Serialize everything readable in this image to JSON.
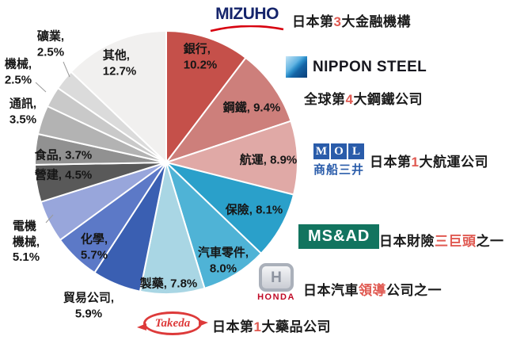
{
  "chart_data": {
    "type": "pie",
    "title": "",
    "direction": "clockwise",
    "start_angle_deg": 0,
    "legend": "none",
    "slices": [
      {
        "label": "銀行",
        "value": 10.2,
        "color": "#c5504a",
        "display": "銀行,\n10.2%"
      },
      {
        "label": "鋼鐵",
        "value": 9.4,
        "color": "#cd7f7b",
        "display": "鋼鐵, 9.4%"
      },
      {
        "label": "航運",
        "value": 8.9,
        "color": "#e0a9a6",
        "display": "航運, 8.9%"
      },
      {
        "label": "保險",
        "value": 8.1,
        "color": "#2aa0ca",
        "display": "保險, 8.1%"
      },
      {
        "label": "汽車零件",
        "value": 8.0,
        "color": "#4fb3d6",
        "display": "汽車零件,\n8.0%"
      },
      {
        "label": "製藥",
        "value": 7.8,
        "color": "#a9d6e4",
        "display": "製藥, 7.8%"
      },
      {
        "label": "貿易公司",
        "value": 5.9,
        "color": "#3a5fb2",
        "display": "貿易公司,\n5.9%"
      },
      {
        "label": "化學",
        "value": 5.7,
        "color": "#5c79c7",
        "display": "化學,\n5.7%"
      },
      {
        "label": "電機機械",
        "value": 5.1,
        "color": "#98a6db",
        "display": "電機\n機械,\n5.1%"
      },
      {
        "label": "營建",
        "value": 4.5,
        "color": "#595959",
        "display": "營建, 4.5%"
      },
      {
        "label": "食品",
        "value": 3.7,
        "color": "#919191",
        "display": "食品, 3.7%"
      },
      {
        "label": "通訊",
        "value": 3.5,
        "color": "#b3b3b3",
        "display": "通訊,\n3.5%"
      },
      {
        "label": "機械",
        "value": 2.5,
        "color": "#c9c9c9",
        "display": "機械,\n2.5%"
      },
      {
        "label": "礦業",
        "value": 2.5,
        "color": "#dbdbdb",
        "display": "礦業,\n2.5%"
      },
      {
        "label": "其他",
        "value": 12.7,
        "color": "#f1f0ef",
        "display": "其他,\n12.7%"
      }
    ]
  },
  "companies": [
    {
      "name": "Mizuho",
      "logo_text": "MIZUHO",
      "desc": {
        "pre": "日本第",
        "highlight": "3",
        "post": "大金融機構"
      }
    },
    {
      "name": "Nippon Steel",
      "logo_text": "NIPPON STEEL",
      "desc": {
        "pre": "全球第",
        "highlight": "4",
        "post": "大鋼鐵公司"
      }
    },
    {
      "name": "MOL",
      "logo_letters": [
        "M",
        "O",
        "L"
      ],
      "logo_subtext": "商船三井",
      "desc": {
        "pre": "日本第",
        "highlight": "1",
        "post": "大航運公司"
      }
    },
    {
      "name": "MS&AD",
      "logo_text": "MS&AD",
      "desc": {
        "pre": "日本財險",
        "highlight": "三巨頭",
        "post": "之一"
      }
    },
    {
      "name": "Honda",
      "logo_text": "HONDA",
      "logo_letter": "H",
      "desc": {
        "pre": "日本汽車",
        "highlight": "領導",
        "post": "公司之一"
      }
    },
    {
      "name": "Takeda",
      "logo_text": "Takeda",
      "desc": {
        "pre": "日本第",
        "highlight": "1",
        "post": "大藥品公司"
      }
    }
  ],
  "brand_colors": {
    "highlight_red": "#e05a52",
    "mizuho_navy": "#15246b",
    "mizuho_swoosh_red": "#d7000f",
    "nippon_steel_blue": "#1464a6",
    "mol_blue": "#2a5caa",
    "msad_green": "#12745f",
    "honda_red": "#c00a26",
    "takeda_red": "#dd3a3a"
  }
}
